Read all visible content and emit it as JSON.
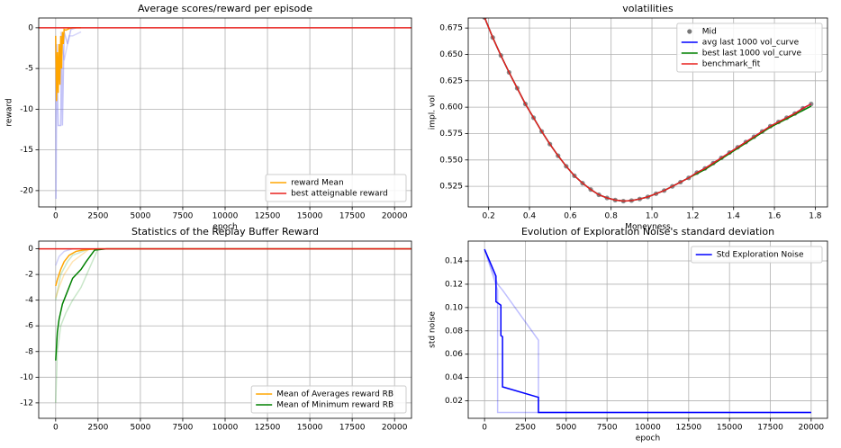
{
  "chart_data": [
    {
      "type": "line",
      "title": "Average scores/reward per episode",
      "xlabel": "epoch",
      "ylabel": "reward",
      "xlim": [
        -1000,
        21000
      ],
      "ylim": [
        -22,
        1.2
      ],
      "xticks": [
        0,
        2500,
        5000,
        7500,
        10000,
        12500,
        15000,
        17500,
        20000
      ],
      "yticks": [
        -20,
        -15,
        -10,
        -5,
        0
      ],
      "grid": true,
      "legend": "lower right",
      "series": [
        {
          "name": null,
          "color": "#7b7bf0",
          "opacity": 0.45,
          "x": [
            0,
            20,
            50,
            60,
            100,
            150,
            200,
            300,
            350,
            400,
            500,
            700,
            900,
            1200
          ],
          "values": [
            -1,
            -21,
            -10,
            -2,
            -7,
            -12,
            -12,
            -12,
            -1,
            -12,
            -0.5,
            -2,
            -0.2,
            0
          ]
        },
        {
          "name": null,
          "color": "#7b7bf0",
          "opacity": 0.3,
          "x": [
            300,
            500,
            800,
            1000,
            1500
          ],
          "values": [
            -0.5,
            -4,
            -1,
            -1,
            -0.5
          ]
        },
        {
          "name": "reward Mean",
          "color": "#ffa500",
          "x": [
            0,
            50,
            100,
            150,
            200,
            250,
            300,
            350,
            400,
            450,
            500,
            600,
            800,
            1000,
            1500
          ],
          "values": [
            -1,
            -9,
            -3,
            -8,
            -2,
            -7,
            -1,
            -5,
            -0.5,
            -2,
            -0.2,
            -0.3,
            -0.1,
            0,
            0
          ]
        },
        {
          "name": "best atteignable reward",
          "color": "#e8211d",
          "x": [
            -1000,
            21000
          ],
          "values": [
            0,
            0
          ]
        }
      ]
    },
    {
      "type": "line",
      "title": "volatilities",
      "xlabel": "Moneyness",
      "ylabel": "impl. vol",
      "xlim": [
        0.1,
        1.86
      ],
      "ylim": [
        0.5055,
        0.6845
      ],
      "xticks": [
        0.2,
        0.4,
        0.6,
        0.8,
        {
          "value": 1,
          "label": "1.0"
        },
        1.2,
        1.4,
        1.6,
        1.8
      ],
      "yticks": [
        0.525,
        {
          "value": 0.55,
          "label": "0.550"
        },
        0.575,
        {
          "value": 0.6,
          "label": "0.600"
        },
        0.625,
        {
          "value": 0.65,
          "label": "0.650"
        },
        0.675
      ],
      "grid": true,
      "legend": "upper right",
      "x": [
        0.18,
        0.22,
        0.26,
        0.3,
        0.34,
        0.38,
        0.42,
        0.46,
        0.5,
        0.54,
        0.58,
        0.62,
        0.66,
        0.7,
        0.74,
        0.78,
        0.82,
        0.86,
        0.9,
        0.94,
        0.98,
        1.02,
        1.06,
        1.1,
        1.14,
        1.18,
        1.22,
        1.26,
        1.3,
        1.34,
        1.38,
        1.42,
        1.46,
        1.5,
        1.54,
        1.58,
        1.62,
        1.66,
        1.7,
        1.74,
        1.78
      ],
      "series": [
        {
          "name": "Mid",
          "color": "#777777",
          "style": "scatter",
          "values": [
            0.685,
            0.666,
            0.649,
            0.633,
            0.618,
            0.603,
            0.59,
            0.577,
            0.565,
            0.554,
            0.544,
            0.535,
            0.528,
            0.522,
            0.517,
            0.514,
            0.512,
            0.511,
            0.5115,
            0.513,
            0.515,
            0.518,
            0.521,
            0.525,
            0.529,
            0.533,
            0.538,
            0.542,
            0.547,
            0.552,
            0.557,
            0.562,
            0.567,
            0.572,
            0.577,
            0.582,
            0.586,
            0.59,
            0.594,
            0.599,
            0.603
          ]
        },
        {
          "name": "avg last 1000 vol_curve",
          "color": "#0000ff",
          "values": [
            0.685,
            0.666,
            0.649,
            0.633,
            0.618,
            0.603,
            0.59,
            0.577,
            0.565,
            0.554,
            0.544,
            0.535,
            0.528,
            0.522,
            0.517,
            0.514,
            0.512,
            0.511,
            0.5115,
            0.513,
            0.515,
            0.518,
            0.521,
            0.525,
            0.529,
            0.533,
            0.538,
            0.542,
            0.547,
            0.552,
            0.557,
            0.562,
            0.567,
            0.572,
            0.577,
            0.582,
            0.586,
            0.59,
            0.594,
            0.599,
            0.603
          ]
        },
        {
          "name": "best last 1000 vol_curve",
          "color": "#008000",
          "values": [
            0.685,
            0.666,
            0.649,
            0.633,
            0.618,
            0.603,
            0.59,
            0.577,
            0.565,
            0.554,
            0.544,
            0.535,
            0.528,
            0.522,
            0.517,
            0.514,
            0.512,
            0.511,
            0.5115,
            0.513,
            0.515,
            0.518,
            0.521,
            0.525,
            0.529,
            0.533,
            0.537,
            0.541,
            0.546,
            0.551,
            0.556,
            0.561,
            0.566,
            0.571,
            0.576,
            0.581,
            0.585,
            0.589,
            0.593,
            0.597,
            0.601
          ]
        },
        {
          "name": "benchmark_fit",
          "color": "#e8211d",
          "values": [
            0.685,
            0.666,
            0.649,
            0.633,
            0.618,
            0.603,
            0.59,
            0.577,
            0.565,
            0.554,
            0.544,
            0.535,
            0.528,
            0.522,
            0.517,
            0.514,
            0.512,
            0.511,
            0.5115,
            0.513,
            0.515,
            0.518,
            0.521,
            0.525,
            0.529,
            0.533,
            0.538,
            0.542,
            0.547,
            0.552,
            0.557,
            0.562,
            0.567,
            0.572,
            0.577,
            0.582,
            0.586,
            0.59,
            0.594,
            0.599,
            0.603
          ]
        }
      ]
    },
    {
      "type": "line",
      "title": "Statistics of the Replay Buffer Reward",
      "xlim": [
        -1000,
        21000
      ],
      "ylim": [
        -13.2,
        0.6
      ],
      "xticks": [
        0,
        2500,
        5000,
        7500,
        10000,
        12500,
        15000,
        17500,
        20000
      ],
      "yticks": [
        -12,
        -10,
        -8,
        -6,
        -4,
        -2,
        0
      ],
      "grid": true,
      "legend": "lower right",
      "series": [
        {
          "name": null,
          "color": "#2ca02c",
          "opacity": 0.25,
          "x": [
            0,
            100,
            300,
            600,
            1000,
            1500,
            2000,
            2500,
            21000
          ],
          "values": [
            -12,
            -8,
            -6,
            -5,
            -4,
            -3,
            -1.5,
            0,
            0
          ]
        },
        {
          "name": null,
          "color": "#2ca02c",
          "opacity": 0.25,
          "x": [
            0,
            300,
            700,
            1000,
            2000
          ],
          "values": [
            -4,
            -2,
            -1,
            -0.5,
            0
          ]
        },
        {
          "name": null,
          "color": "#ffa500",
          "opacity": 0.3,
          "x": [
            0,
            200,
            500,
            1000,
            1500,
            2000
          ],
          "values": [
            -3.8,
            -3,
            -2,
            -1,
            -0.5,
            0
          ]
        },
        {
          "name": null,
          "color": "#7b7bf0",
          "opacity": 0.35,
          "x": [
            0,
            200,
            500,
            1000
          ],
          "values": [
            -1.3,
            -0.6,
            -0.2,
            0
          ]
        },
        {
          "name": "Mean of Averages reward RB",
          "color": "#ffa500",
          "x": [
            0,
            100,
            300,
            500,
            800,
            1200,
            1600,
            2000,
            2500,
            21000
          ],
          "values": [
            -2.9,
            -2.4,
            -1.6,
            -1.0,
            -0.5,
            -0.2,
            -0.1,
            -0.05,
            0,
            0
          ]
        },
        {
          "name": "Mean of Minimum reward RB",
          "color": "#008000",
          "x": [
            0,
            100,
            200,
            400,
            700,
            1000,
            1500,
            1800,
            2300,
            3000,
            21000
          ],
          "values": [
            -8.7,
            -6.5,
            -5.5,
            -4.3,
            -3.3,
            -2.3,
            -1.6,
            -1.0,
            -0.1,
            0,
            0
          ]
        },
        {
          "name": null,
          "color": "#e8211d",
          "x": [
            -1000,
            21000
          ],
          "values": [
            0,
            0
          ]
        }
      ]
    },
    {
      "type": "line",
      "title": "Evolution of Exploration Noise's standard deviation",
      "xlabel": "epoch",
      "ylabel": "std noise",
      "xlim": [
        -1000,
        21000
      ],
      "ylim": [
        0.005,
        0.157
      ],
      "xticks": [
        0,
        2500,
        5000,
        7500,
        10000,
        12500,
        15000,
        17500,
        20000
      ],
      "yticks": [
        0.02,
        0.04,
        0.06,
        0.08,
        {
          "value": 0.1,
          "label": "0.10"
        },
        0.12,
        0.14
      ],
      "grid": true,
      "legend": "upper right",
      "series": [
        {
          "name": null,
          "color": "#0000ff",
          "opacity": 0.25,
          "x": [
            0,
            800,
            1100,
            3300,
            3300,
            20000
          ],
          "values": [
            0.15,
            0.12,
            0.115,
            0.072,
            0.01,
            0.01
          ]
        },
        {
          "name": null,
          "color": "#0000ff",
          "opacity": 0.25,
          "x": [
            0,
            800,
            800,
            20000
          ],
          "values": [
            0.15,
            0.115,
            0.01,
            0.01
          ]
        },
        {
          "name": "Std Exploration Noise",
          "color": "#0000ff",
          "x": [
            0,
            700,
            700,
            1000,
            1000,
            1100,
            1100,
            3300,
            3300,
            20000
          ],
          "values": [
            0.15,
            0.127,
            0.105,
            0.102,
            0.076,
            0.075,
            0.032,
            0.023,
            0.01,
            0.01
          ]
        }
      ]
    }
  ]
}
